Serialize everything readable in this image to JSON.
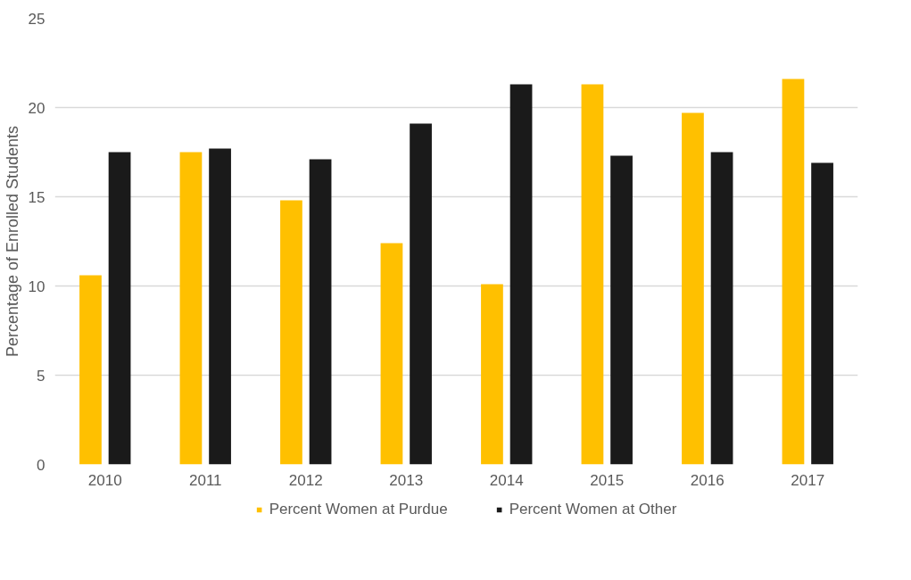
{
  "chart_data": {
    "type": "bar",
    "ylabel": "Percentage of Enrolled Students",
    "categories": [
      "2010",
      "2011",
      "2012",
      "2013",
      "2014",
      "2015",
      "2016",
      "2017"
    ],
    "series": [
      {
        "name": "Percent Women at Purdue",
        "color": "#ffc000",
        "values": [
          10.6,
          17.5,
          14.8,
          12.4,
          10.1,
          21.3,
          19.7,
          21.6
        ]
      },
      {
        "name": "Percent Women at Other",
        "color": "#1a1a1a",
        "values": [
          17.5,
          17.7,
          17.1,
          19.1,
          21.3,
          17.3,
          17.5,
          16.9
        ]
      }
    ],
    "ylim": [
      0,
      25
    ],
    "yticks": [
      0,
      5,
      10,
      15,
      20,
      25
    ],
    "grid": "y",
    "legend": "bottom"
  }
}
